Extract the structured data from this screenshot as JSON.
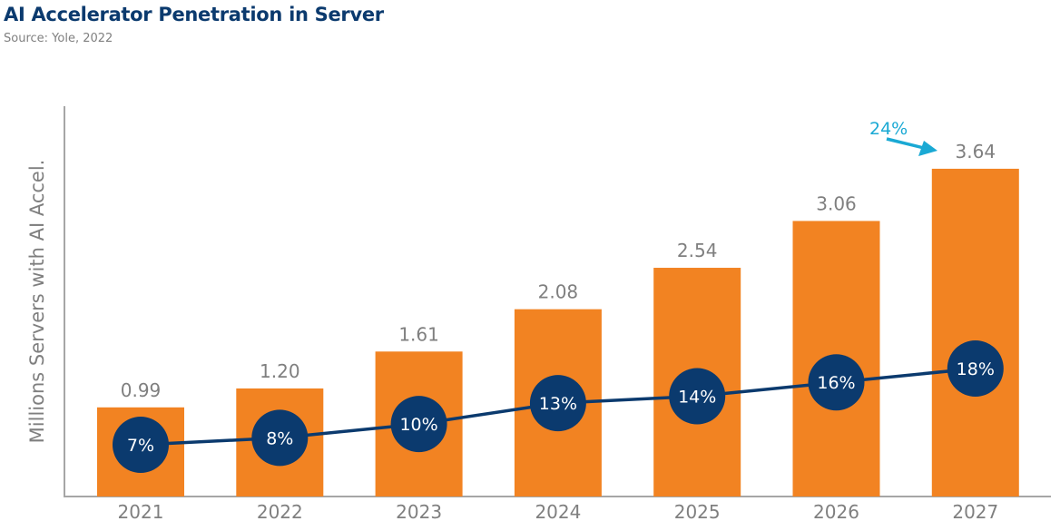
{
  "title": "AI Accelerator Penetration in Server",
  "source": "Source: Yole, 2022",
  "chart_data": {
    "type": "bar",
    "title": "AI Accelerator Penetration in Server",
    "ylabel": "Millions Servers with AI Accel.",
    "xlabel": "",
    "categories": [
      "2021",
      "2022",
      "2023",
      "2024",
      "2025",
      "2026",
      "2027"
    ],
    "series": [
      {
        "name": "Millions Servers with AI Accel.",
        "type": "bar",
        "values": [
          0.99,
          1.2,
          1.61,
          2.08,
          2.54,
          3.06,
          3.64
        ],
        "labels": [
          "0.99",
          "1.20",
          "1.61",
          "2.08",
          "2.54",
          "3.06",
          "3.64"
        ]
      },
      {
        "name": "Penetration",
        "type": "line",
        "values": [
          7,
          8,
          10,
          13,
          14,
          16,
          18
        ],
        "labels": [
          "7%",
          "8%",
          "10%",
          "13%",
          "14%",
          "16%",
          "18%"
        ]
      }
    ],
    "ylim": [
      0,
      4.33
    ],
    "annotation": "24%",
    "colors": {
      "bar": "#f28322",
      "line": "#0b3a6e",
      "annotation": "#1aa9d4",
      "label": "#7f7f7f",
      "axis": "#a6a6a6"
    }
  }
}
